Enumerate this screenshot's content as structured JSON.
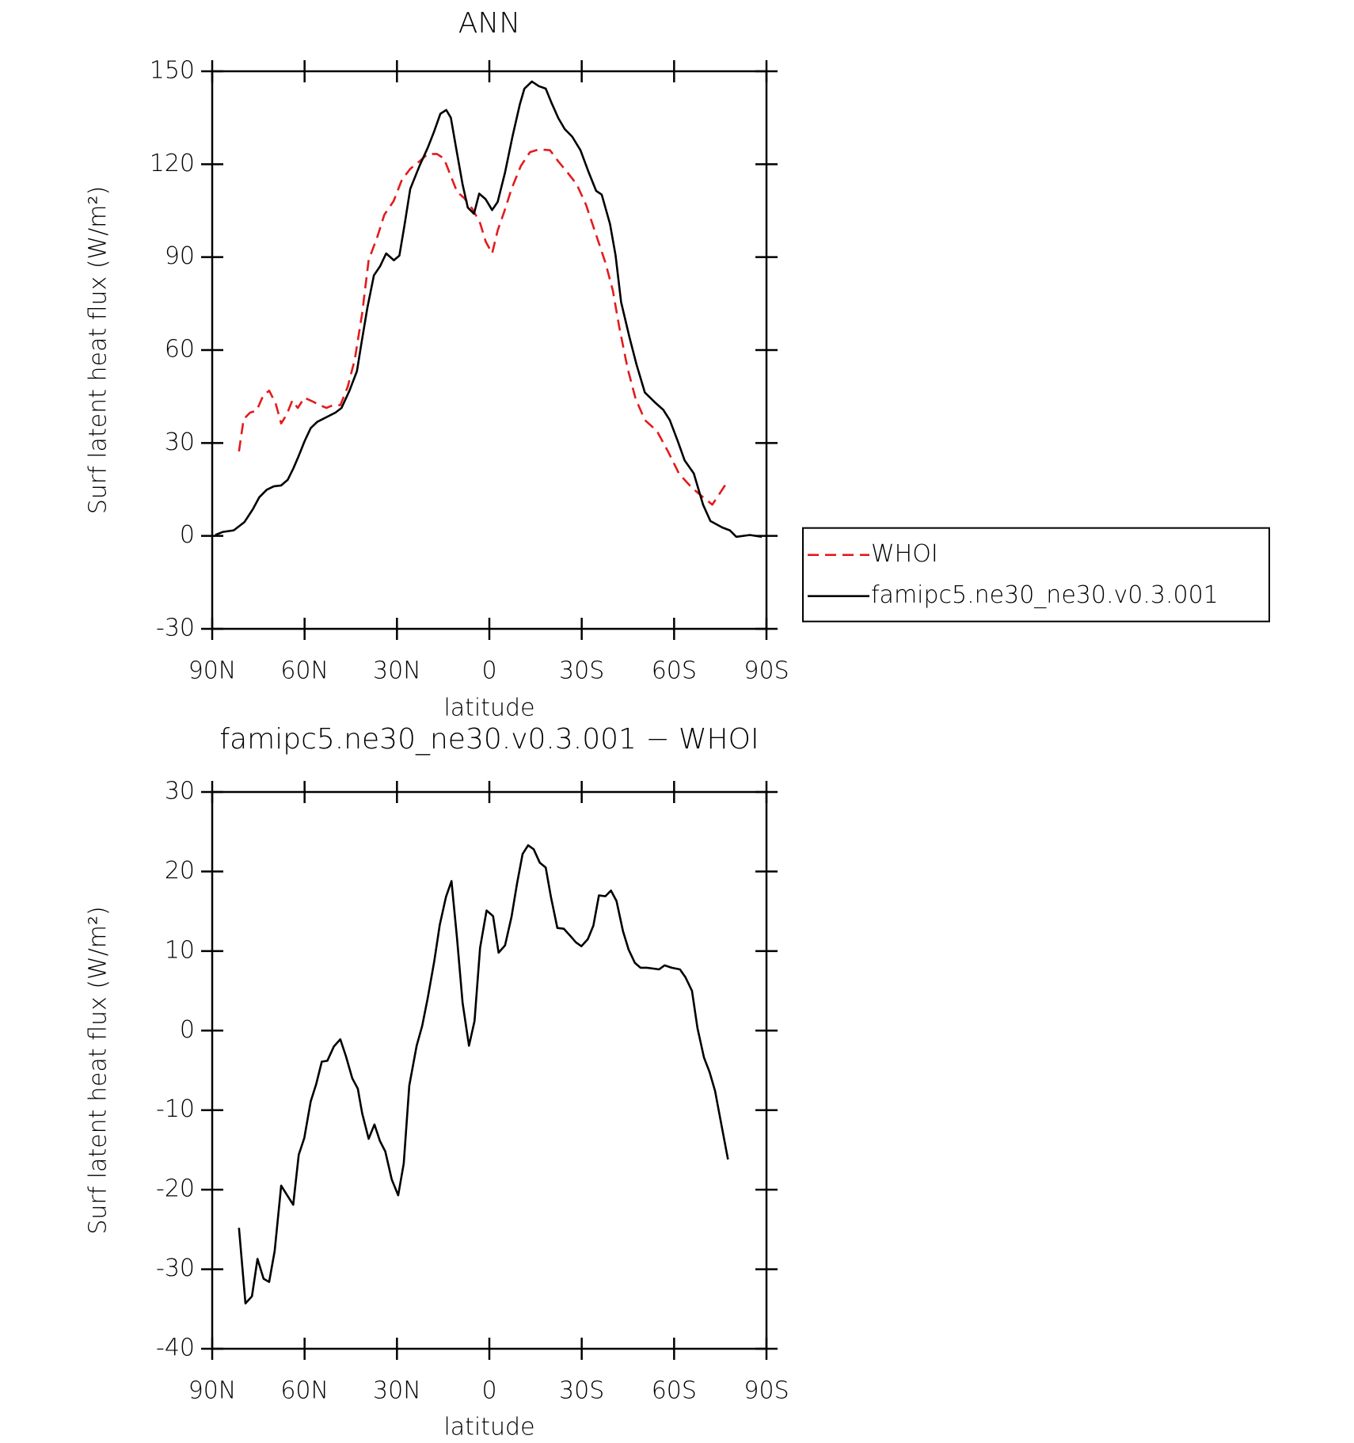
{
  "chart_data": [
    {
      "type": "line",
      "title": "ANN",
      "x_label": "latitude",
      "y_label": "Surf latent heat flux (W/m²)",
      "xlim": [
        90,
        -90
      ],
      "xticks": [
        {
          "value": 90,
          "label": "90N"
        },
        {
          "value": 60,
          "label": "60N"
        },
        {
          "value": 30,
          "label": "30N"
        },
        0,
        {
          "value": -30,
          "label": "30S"
        },
        {
          "value": -60,
          "label": "60S"
        },
        {
          "value": -90,
          "label": "90S"
        }
      ],
      "ylim": [
        -30,
        150
      ],
      "yticks": [
        -30,
        0,
        30,
        60,
        90,
        120,
        150
      ],
      "legend": "right",
      "series": [
        {
          "name": "WHOI",
          "color": "#e41a1c",
          "dashed": true,
          "x": [
            81.3,
            79.8,
            77.7,
            75.6,
            73.5,
            71.5,
            69.4,
            67.6,
            65.8,
            64,
            62.2,
            60.1,
            57.4,
            55,
            52.9,
            50.8,
            48.4,
            46,
            43.7,
            41.3,
            39.2,
            36.5,
            34.1,
            31.1,
            28.4,
            25.7,
            22.7,
            20,
            17,
            14.7,
            12.6,
            10.5,
            8.1,
            5.4,
            3,
            1.2,
            -0.9,
            -2.7,
            -4.8,
            -7.2,
            -10.2,
            -13.2,
            -16.1,
            -19.7,
            -22.4,
            -25.4,
            -28.4,
            -31.4,
            -34.4,
            -37.7,
            -40.1,
            -42.2,
            -44.9,
            -47.5,
            -50.5,
            -54.4,
            -58,
            -61.6,
            -65.8,
            -69.4,
            -72.4,
            -74.8,
            -77.5
          ],
          "values": [
            27.3,
            37.7,
            39.8,
            40.4,
            45.2,
            46.9,
            42.8,
            36.3,
            39.2,
            43.7,
            41.3,
            44.6,
            43.4,
            42.2,
            41.3,
            42.2,
            42.2,
            48.1,
            57,
            71.9,
            89.1,
            96.2,
            103.7,
            108.1,
            115,
            118.5,
            120.9,
            123.3,
            123.3,
            121.8,
            116.4,
            111.1,
            109,
            105.4,
            101,
            95.1,
            91.2,
            98.6,
            104.6,
            112,
            119.4,
            123.9,
            124.8,
            124.5,
            120.9,
            117.3,
            113.5,
            106.9,
            98,
            88.2,
            79.3,
            67.4,
            54.1,
            44.3,
            37.4,
            33.9,
            27.3,
            20.1,
            15.5,
            12.5,
            10.1,
            13.7,
            17.8
          ]
        },
        {
          "name": "famipc5.ne30_ne30.v0.3.001",
          "color": "#000000",
          "dashed": false,
          "x": [
            89,
            86.5,
            83,
            79.5,
            76.8,
            74.7,
            72.3,
            70,
            67.6,
            65.5,
            63.7,
            62,
            60,
            58,
            55.9,
            50,
            48,
            45.4,
            43,
            41.5,
            39.6,
            37.5,
            35.5,
            33.5,
            31,
            29.2,
            27.5,
            25.7,
            22.7,
            20,
            18,
            15.9,
            14,
            12.5,
            10.8,
            8.7,
            7,
            5,
            3.3,
            1.2,
            -0.9,
            -2.7,
            -5.1,
            -7.5,
            -9.9,
            -11.4,
            -13.8,
            -16.1,
            -18.3,
            -20.3,
            -22.4,
            -24.5,
            -26.9,
            -29.6,
            -32.3,
            -34.7,
            -36.5,
            -39.2,
            -41,
            -42.8,
            -45.5,
            -47.8,
            -50.5,
            -53.8,
            -56.5,
            -58.6,
            -61.3,
            -63.4,
            -66.4,
            -69.4,
            -71.8,
            -75.7,
            -78.1,
            -80.2,
            -84.6,
            -88.5
          ],
          "values": [
            0.3,
            1.3,
            1.8,
            4.5,
            8.6,
            12.5,
            14.9,
            16,
            16.3,
            18.1,
            21.7,
            25.6,
            30.6,
            34.8,
            36.8,
            39.8,
            41.3,
            46.9,
            53.2,
            62.4,
            73.7,
            84.1,
            87,
            91.2,
            89,
            90.5,
            100.7,
            112,
            119.4,
            125.3,
            130.4,
            136.3,
            137.5,
            135,
            125.3,
            113.5,
            106,
            104,
            110.5,
            108.7,
            105.2,
            107.8,
            117.3,
            128.9,
            139.3,
            144.4,
            146.7,
            145.2,
            144.4,
            139.6,
            134.9,
            131.3,
            128.9,
            124.5,
            117.3,
            111.4,
            110.2,
            100.7,
            90.6,
            75.5,
            64.2,
            55.3,
            46.3,
            43.1,
            40.7,
            37.4,
            30.3,
            24.4,
            20.2,
            10.1,
            4.8,
            2.7,
            1.8,
            -0.3,
            0.3,
            -0.3
          ]
        }
      ]
    },
    {
      "type": "line",
      "title": "famipc5.ne30_ne30.v0.3.001 − WHOI",
      "x_label": "latitude",
      "y_label": "Surf latent heat flux (W/m²)",
      "xlim": [
        90,
        -90
      ],
      "xticks": [
        {
          "value": 90,
          "label": "90N"
        },
        {
          "value": 60,
          "label": "60N"
        },
        {
          "value": 30,
          "label": "30N"
        },
        0,
        {
          "value": -30,
          "label": "30S"
        },
        {
          "value": -60,
          "label": "60S"
        },
        {
          "value": -90,
          "label": "90S"
        }
      ],
      "ylim": [
        -40,
        30
      ],
      "yticks": [
        -40,
        -30,
        -20,
        -10,
        0,
        10,
        20,
        30
      ],
      "series": [
        {
          "color": "#000000",
          "dashed": false,
          "x": [
            81.3,
            79.2,
            77.1,
            75.3,
            73.3,
            71.5,
            69.7,
            67.6,
            65.5,
            63.7,
            61.9,
            60.1,
            58,
            56.2,
            54.4,
            52.6,
            50.5,
            48.4,
            46.6,
            44.5,
            42.7,
            41.3,
            39.2,
            37.3,
            35.5,
            33.8,
            31.7,
            29.6,
            27.8,
            26,
            23.6,
            21.8,
            20,
            17.9,
            16.1,
            14.1,
            12.3,
            10.5,
            8.7,
            6.6,
            4.8,
            3,
            0.9,
            -1.2,
            -3,
            -5.1,
            -7.2,
            -9,
            -10.8,
            -12.6,
            -14.4,
            -16.4,
            -18.3,
            -20,
            -22.1,
            -24.2,
            -26.3,
            -28.1,
            -29.9,
            -32,
            -33.8,
            -35.6,
            -37.7,
            -39.5,
            -41.3,
            -43.4,
            -45.2,
            -47.3,
            -49.1,
            -51.2,
            -53.3,
            -55.1,
            -56.9,
            -59.2,
            -61.9,
            -63.7,
            -65.8,
            -67.6,
            -69.7,
            -71.5,
            -73.3,
            -75.4,
            -77.5
          ],
          "values": [
            -24.8,
            -34.3,
            -33.4,
            -28.7,
            -31.2,
            -31.6,
            -27.7,
            -19.5,
            -20.8,
            -21.9,
            -15.6,
            -13.5,
            -8.9,
            -6.7,
            -3.9,
            -3.8,
            -2,
            -1.1,
            -3.2,
            -6,
            -7.3,
            -10.4,
            -13.6,
            -11.8,
            -13.9,
            -15.2,
            -18.7,
            -20.7,
            -16.7,
            -6.9,
            -1.9,
            0.6,
            4.1,
            8.7,
            13.3,
            16.8,
            18.8,
            11.6,
            3.5,
            -1.9,
            1.2,
            10.4,
            15.1,
            14.4,
            9.8,
            10.7,
            14.3,
            18.5,
            22.2,
            23.3,
            22.8,
            21.1,
            20.5,
            16.8,
            12.9,
            12.8,
            11.9,
            11.1,
            10.6,
            11.5,
            13.2,
            17,
            16.9,
            17.6,
            16.3,
            12.5,
            10.2,
            8.5,
            7.9,
            7.9,
            7.8,
            7.7,
            8.2,
            7.9,
            7.7,
            6.7,
            5,
            0.3,
            -3.4,
            -5.2,
            -7.6,
            -11.9,
            -16.2
          ]
        }
      ]
    }
  ]
}
